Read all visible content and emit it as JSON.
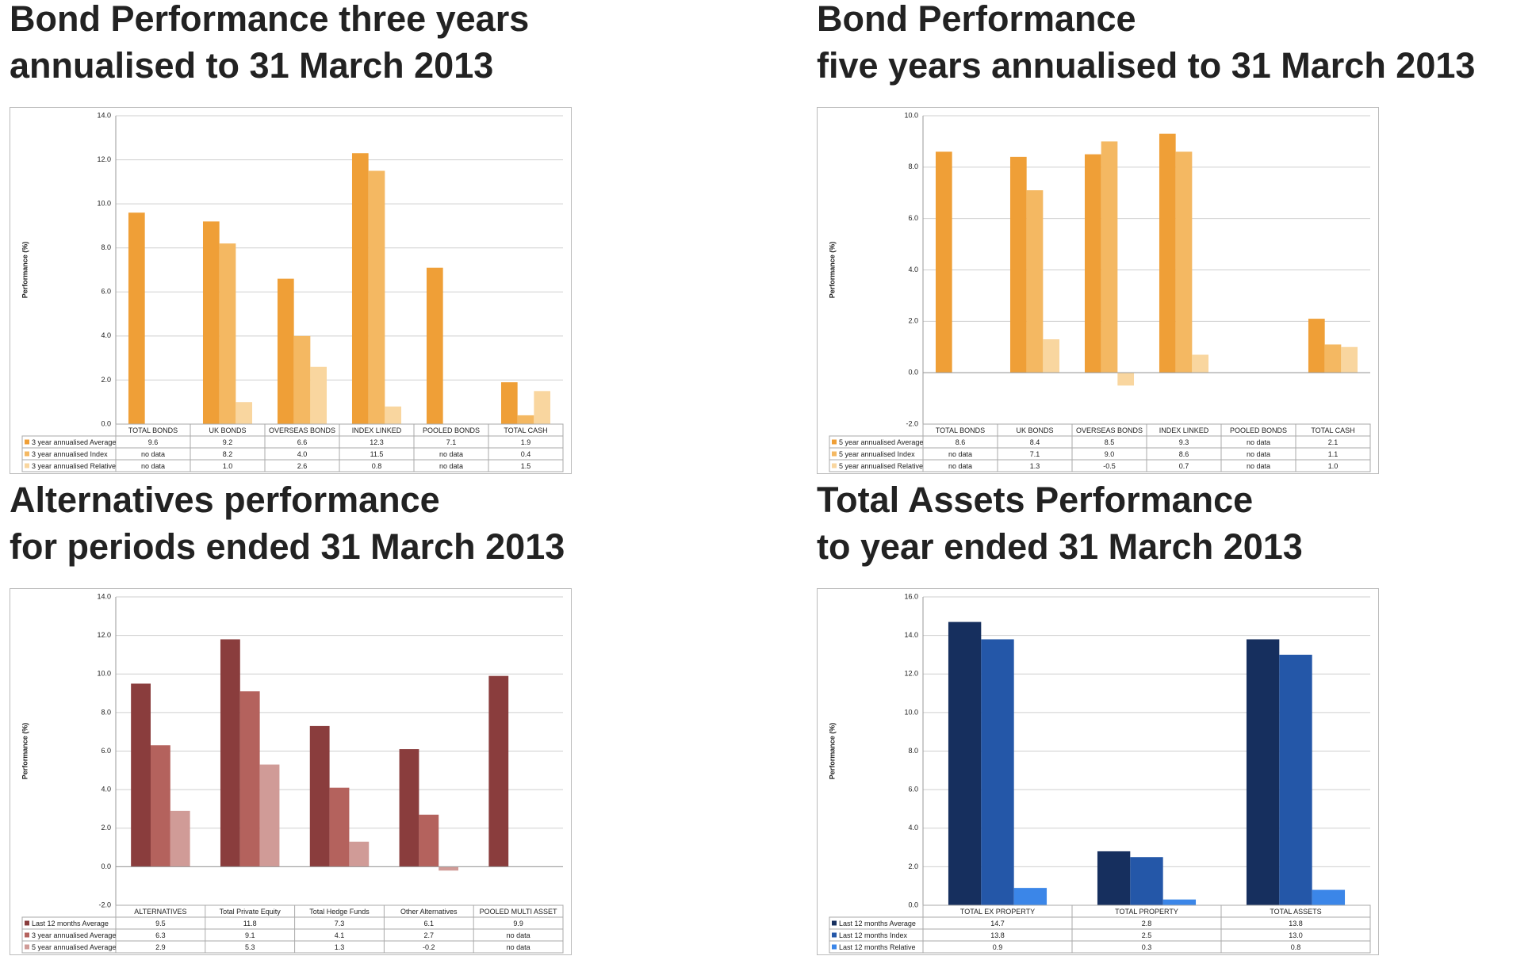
{
  "charts": [
    {
      "chart_data": {
        "type": "bar",
        "title": [
          "Bond Performance three years",
          "annualised to 31 March 2013"
        ],
        "y_label": "Performance (%)",
        "categories": [
          "TOTAL BONDS",
          "UK BONDS",
          "OVERSEAS BONDS",
          "INDEX LINKED",
          "POOLED BONDS",
          "TOTAL CASH"
        ],
        "series": [
          {
            "name": "3 year annualised Average",
            "color": "#ef9f37",
            "values": [
              9.6,
              9.2,
              6.6,
              12.3,
              7.1,
              1.9
            ],
            "value_labels": [
              "9.6",
              "9.2",
              "6.6",
              "12.3",
              "7.1",
              "1.9"
            ]
          },
          {
            "name": "3 year annualised Index",
            "color": "#f4b862",
            "values": [
              null,
              8.2,
              4.0,
              11.5,
              null,
              0.4
            ],
            "value_labels": [
              "no data",
              "8.2",
              "4.0",
              "11.5",
              "no data",
              "0.4"
            ]
          },
          {
            "name": "3 year annualised Relative",
            "color": "#f9d69f",
            "values": [
              null,
              1.0,
              2.6,
              0.8,
              null,
              1.5
            ],
            "value_labels": [
              "no data",
              "1.0",
              "2.6",
              "0.8",
              "no data",
              "1.5"
            ]
          }
        ],
        "ylim": [
          0,
          14
        ],
        "yticks": [
          {
            "value": 0,
            "label": "0.0"
          },
          {
            "value": 2,
            "label": "2.0"
          },
          {
            "value": 4,
            "label": "4.0"
          },
          {
            "value": 6,
            "label": "6.0"
          },
          {
            "value": 8,
            "label": "8.0"
          },
          {
            "value": 10,
            "label": "10.0"
          },
          {
            "value": 12,
            "label": "12.0"
          },
          {
            "value": 14,
            "label": "14.0"
          }
        ],
        "grid": true
      }
    },
    {
      "chart_data": {
        "type": "bar",
        "title": [
          "Bond Performance",
          "five years annualised to 31 March 2013"
        ],
        "y_label": "Performance (%)",
        "categories": [
          "TOTAL BONDS",
          "UK BONDS",
          "OVERSEAS BONDS",
          "INDEX LINKED",
          "POOLED BONDS",
          "TOTAL CASH"
        ],
        "series": [
          {
            "name": "5 year annualised Average",
            "color": "#ef9f37",
            "values": [
              8.6,
              8.4,
              8.5,
              9.3,
              null,
              2.1
            ],
            "value_labels": [
              "8.6",
              "8.4",
              "8.5",
              "9.3",
              "no data",
              "2.1"
            ]
          },
          {
            "name": "5 year annualised Index",
            "color": "#f4b862",
            "values": [
              null,
              7.1,
              9.0,
              8.6,
              null,
              1.1
            ],
            "value_labels": [
              "no data",
              "7.1",
              "9.0",
              "8.6",
              "no data",
              "1.1"
            ]
          },
          {
            "name": "5 year annualised Relative",
            "color": "#f9d69f",
            "values": [
              null,
              1.3,
              -0.5,
              0.7,
              null,
              1.0
            ],
            "value_labels": [
              "no data",
              "1.3",
              "-0.5",
              "0.7",
              "no data",
              "1.0"
            ]
          }
        ],
        "ylim": [
          -2,
          10
        ],
        "yticks": [
          {
            "value": -2,
            "label": "-2.0"
          },
          {
            "value": 0,
            "label": "0.0"
          },
          {
            "value": 2,
            "label": "2.0"
          },
          {
            "value": 4,
            "label": "4.0"
          },
          {
            "value": 6,
            "label": "6.0"
          },
          {
            "value": 8,
            "label": "8.0"
          },
          {
            "value": 10,
            "label": "10.0"
          }
        ],
        "grid": true
      }
    },
    {
      "chart_data": {
        "type": "bar",
        "title": [
          "Alternatives performance",
          "for periods ended 31 March 2013"
        ],
        "y_label": "Performance (%)",
        "categories": [
          "ALTERNATIVES",
          "Total Private Equity",
          "Total Hedge Funds",
          "Other Alternatives",
          "POOLED MULTI ASSET"
        ],
        "series": [
          {
            "name": "Last 12 months Average",
            "color": "#8a3d3d",
            "values": [
              9.5,
              11.8,
              7.3,
              6.1,
              9.9
            ],
            "value_labels": [
              "9.5",
              "11.8",
              "7.3",
              "6.1",
              "9.9"
            ]
          },
          {
            "name": "3 year annualised Average",
            "color": "#b4625d",
            "values": [
              6.3,
              9.1,
              4.1,
              2.7,
              null
            ],
            "value_labels": [
              "6.3",
              "9.1",
              "4.1",
              "2.7",
              "no data"
            ]
          },
          {
            "name": "5 year annualised Average",
            "color": "#d09b97",
            "values": [
              2.9,
              5.3,
              1.3,
              -0.2,
              null
            ],
            "value_labels": [
              "2.9",
              "5.3",
              "1.3",
              "-0.2",
              "no data"
            ]
          }
        ],
        "ylim": [
          -2,
          14
        ],
        "yticks": [
          {
            "value": -2,
            "label": "-2.0"
          },
          {
            "value": 0,
            "label": "0.0"
          },
          {
            "value": 2,
            "label": "2.0"
          },
          {
            "value": 4,
            "label": "4.0"
          },
          {
            "value": 6,
            "label": "6.0"
          },
          {
            "value": 8,
            "label": "8.0"
          },
          {
            "value": 10,
            "label": "10.0"
          },
          {
            "value": 12,
            "label": "12.0"
          },
          {
            "value": 14,
            "label": "14.0"
          }
        ],
        "grid": true
      }
    },
    {
      "chart_data": {
        "type": "bar",
        "title": [
          "Total Assets Performance",
          "to year ended 31 March 2013"
        ],
        "y_label": "Performance (%)",
        "categories": [
          "TOTAL EX PROPERTY",
          "TOTAL PROPERTY",
          "TOTAL ASSETS"
        ],
        "series": [
          {
            "name": "Last 12 months Average",
            "color": "#162f5e",
            "values": [
              14.7,
              2.8,
              13.8
            ],
            "value_labels": [
              "14.7",
              "2.8",
              "13.8"
            ]
          },
          {
            "name": "Last 12 months Index",
            "color": "#2457a8",
            "values": [
              13.8,
              2.5,
              13.0
            ],
            "value_labels": [
              "13.8",
              "2.5",
              "13.0"
            ]
          },
          {
            "name": "Last 12 months Relative",
            "color": "#3b86e8",
            "values": [
              0.9,
              0.3,
              0.8
            ],
            "value_labels": [
              "0.9",
              "0.3",
              "0.8"
            ]
          }
        ],
        "ylim": [
          0,
          16
        ],
        "yticks": [
          {
            "value": 0,
            "label": "0.0"
          },
          {
            "value": 2,
            "label": "2.0"
          },
          {
            "value": 4,
            "label": "4.0"
          },
          {
            "value": 6,
            "label": "6.0"
          },
          {
            "value": 8,
            "label": "8.0"
          },
          {
            "value": 10,
            "label": "10.0"
          },
          {
            "value": 12,
            "label": "12.0"
          },
          {
            "value": 14,
            "label": "14.0"
          },
          {
            "value": 16,
            "label": "16.0"
          }
        ],
        "grid": true
      }
    }
  ]
}
